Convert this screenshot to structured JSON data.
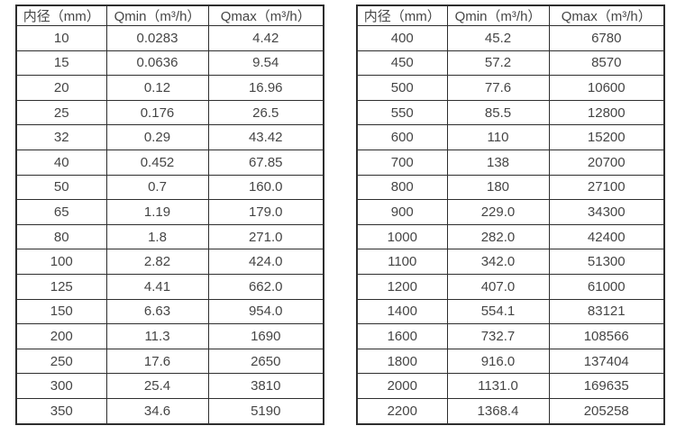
{
  "colors": {
    "border": "#2e2e2e",
    "text": "#454545",
    "background": "#ffffff"
  },
  "tables": [
    {
      "name": "flow-spec-table-small-diameters",
      "headers": [
        "内径（mm）",
        "Qmin（m³/h）",
        "Qmax（m³/h）"
      ],
      "rows": [
        [
          "10",
          "0.0283",
          "4.42"
        ],
        [
          "15",
          "0.0636",
          "9.54"
        ],
        [
          "20",
          "0.12",
          "16.96"
        ],
        [
          "25",
          "0.176",
          "26.5"
        ],
        [
          "32",
          "0.29",
          "43.42"
        ],
        [
          "40",
          "0.452",
          "67.85"
        ],
        [
          "50",
          "0.7",
          "160.0"
        ],
        [
          "65",
          "1.19",
          "179.0"
        ],
        [
          "80",
          "1.8",
          "271.0"
        ],
        [
          "100",
          "2.82",
          "424.0"
        ],
        [
          "125",
          "4.41",
          "662.0"
        ],
        [
          "150",
          "6.63",
          "954.0"
        ],
        [
          "200",
          "11.3",
          "1690"
        ],
        [
          "250",
          "17.6",
          "2650"
        ],
        [
          "300",
          "25.4",
          "3810"
        ],
        [
          "350",
          "34.6",
          "5190"
        ]
      ]
    },
    {
      "name": "flow-spec-table-large-diameters",
      "headers": [
        "内径（mm）",
        "Qmin（m³/h）",
        "Qmax（m³/h）"
      ],
      "rows": [
        [
          "400",
          "45.2",
          "6780"
        ],
        [
          "450",
          "57.2",
          "8570"
        ],
        [
          "500",
          "77.6",
          "10600"
        ],
        [
          "550",
          "85.5",
          "12800"
        ],
        [
          "600",
          "110",
          "15200"
        ],
        [
          "700",
          "138",
          "20700"
        ],
        [
          "800",
          "180",
          "27100"
        ],
        [
          "900",
          "229.0",
          "34300"
        ],
        [
          "1000",
          "282.0",
          "42400"
        ],
        [
          "1100",
          "342.0",
          "51300"
        ],
        [
          "1200",
          "407.0",
          "61000"
        ],
        [
          "1400",
          "554.1",
          "83121"
        ],
        [
          "1600",
          "732.7",
          "108566"
        ],
        [
          "1800",
          "916.0",
          "137404"
        ],
        [
          "2000",
          "1131.0",
          "169635"
        ],
        [
          "2200",
          "1368.4",
          "205258"
        ]
      ]
    }
  ]
}
